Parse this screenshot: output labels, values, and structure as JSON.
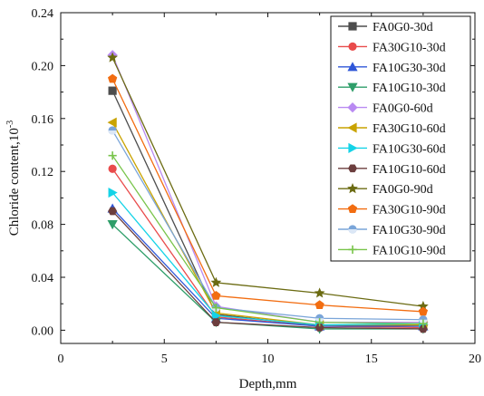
{
  "chart_data": {
    "type": "line",
    "xlabel": "Depth,mm",
    "ylabel": "Chloride content,10",
    "ylabel_superscript": "-3",
    "xlim": [
      0,
      20
    ],
    "ylim": [
      -0.01,
      0.24
    ],
    "x_ticks": [
      0,
      5,
      10,
      15,
      20
    ],
    "y_ticks": [
      0.0,
      0.04,
      0.08,
      0.12,
      0.16,
      0.2,
      0.24
    ],
    "x_tick_labels": [
      "0",
      "5",
      "10",
      "15",
      "20"
    ],
    "y_tick_labels": [
      "0.00",
      "0.04",
      "0.08",
      "0.12",
      "0.16",
      "0.20",
      "0.24"
    ],
    "legend_position": "top-right",
    "grid": false,
    "x": [
      2.5,
      7.5,
      12.5,
      17.5
    ],
    "series": [
      {
        "name": "FA0G0-30d",
        "color": "#4d4d4d",
        "marker": "square",
        "values": [
          0.181,
          0.012,
          0.003,
          0.004
        ]
      },
      {
        "name": "FA30G10-30d",
        "color": "#e94b4b",
        "marker": "circle",
        "values": [
          0.122,
          0.01,
          0.003,
          0.002
        ]
      },
      {
        "name": "FA10G30-30d",
        "color": "#2f57d8",
        "marker": "triangle-up",
        "values": [
          0.092,
          0.009,
          0.003,
          0.003
        ]
      },
      {
        "name": "FA10G10-30d",
        "color": "#2e9e69",
        "marker": "triangle-down",
        "values": [
          0.08,
          0.006,
          0.001,
          0.001
        ]
      },
      {
        "name": "FA0G0-60d",
        "color": "#b98af2",
        "marker": "diamond",
        "values": [
          0.208,
          0.018,
          0.006,
          0.006
        ]
      },
      {
        "name": "FA30G10-60d",
        "color": "#c9a300",
        "marker": "triangle-left",
        "values": [
          0.157,
          0.013,
          0.004,
          0.004
        ]
      },
      {
        "name": "FA10G30-60d",
        "color": "#14d3e7",
        "marker": "triangle-right",
        "values": [
          0.104,
          0.011,
          0.004,
          0.005
        ]
      },
      {
        "name": "FA10G10-60d",
        "color": "#6c3e3e",
        "marker": "hexagon",
        "values": [
          0.09,
          0.006,
          0.002,
          0.001
        ]
      },
      {
        "name": "FA0G0-90d",
        "color": "#6b6b12",
        "marker": "star",
        "values": [
          0.206,
          0.036,
          0.028,
          0.018
        ]
      },
      {
        "name": "FA30G10-90d",
        "color": "#f26d11",
        "marker": "pentagon",
        "values": [
          0.19,
          0.026,
          0.019,
          0.014
        ]
      },
      {
        "name": "FA10G30-90d",
        "color": "#7aa5d9",
        "marker": "circle-split",
        "values": [
          0.151,
          0.017,
          0.009,
          0.008
        ]
      },
      {
        "name": "FA10G10-90d",
        "color": "#78c44a",
        "marker": "plus",
        "values": [
          0.132,
          0.017,
          0.006,
          0.005
        ]
      }
    ]
  }
}
